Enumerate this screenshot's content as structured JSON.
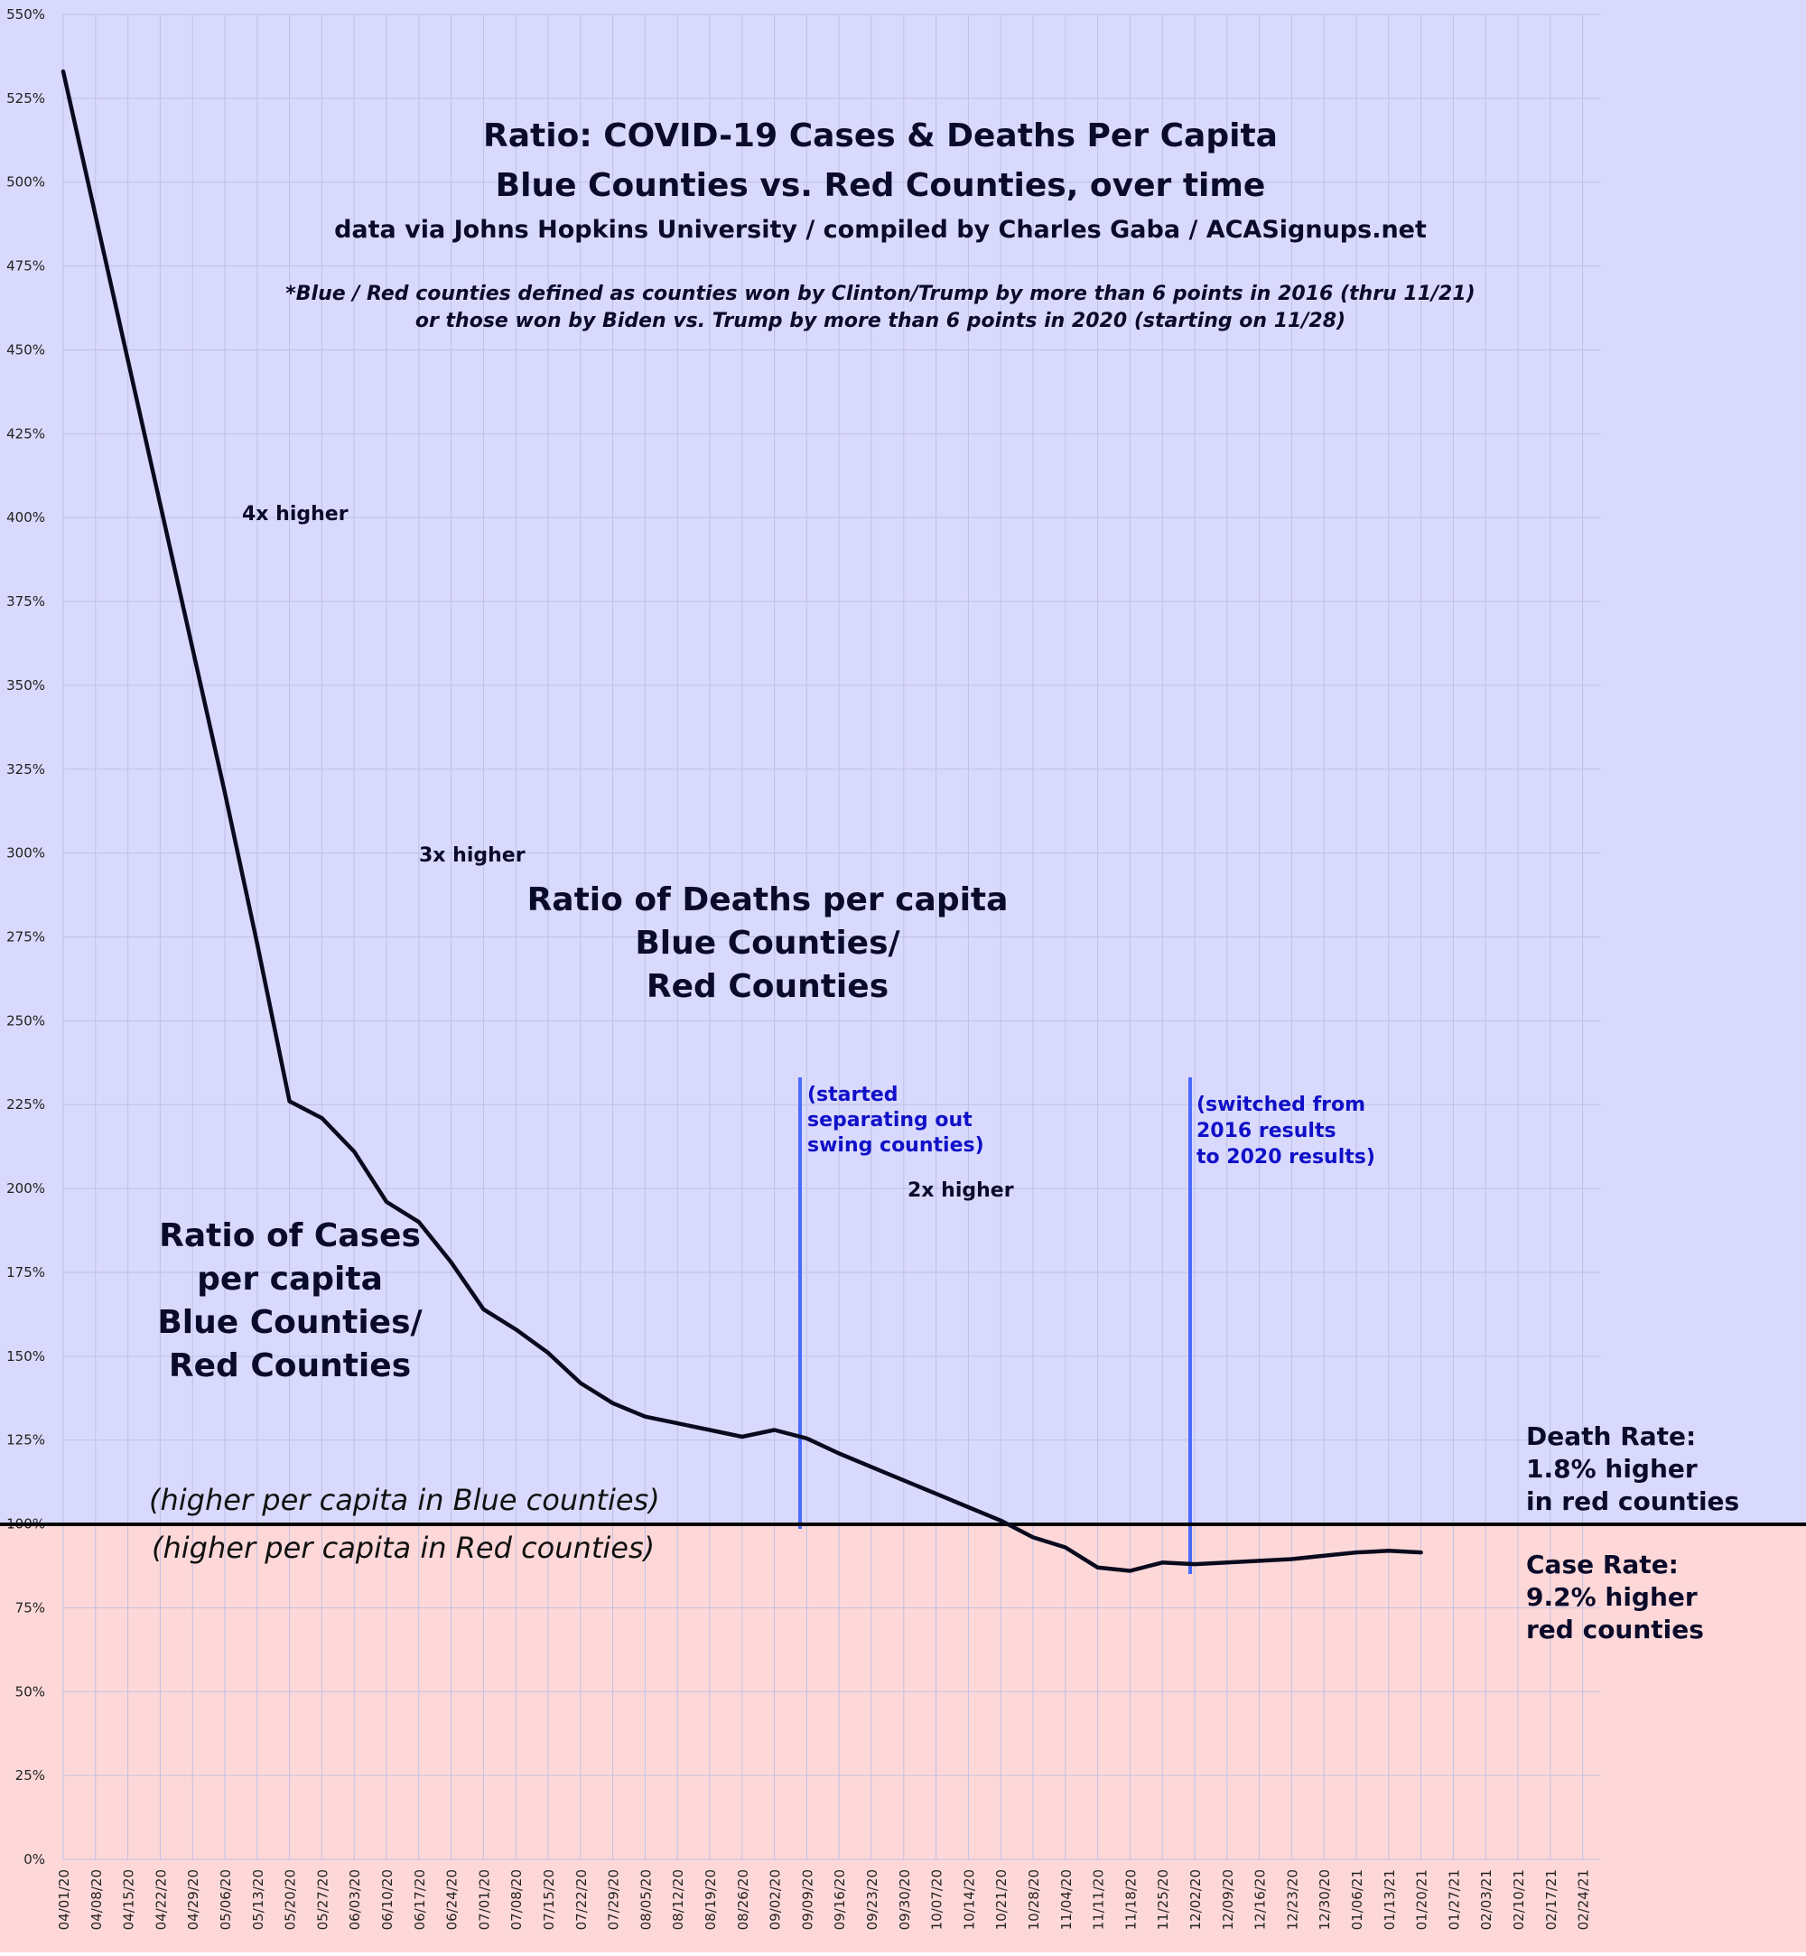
{
  "chart_data": {
    "type": "line",
    "title": "Ratio: COVID-19 Cases & Deaths Per Capita",
    "title_line2": "Blue Counties vs. Red Counties, over time",
    "subtitle": "data via Johns Hopkins University / compiled by Charles Gaba / ACASignups.net",
    "footnote_line1": "*Blue / Red counties defined as counties won by Clinton/Trump by more than 6 points in 2016 (thru 11/21)",
    "footnote_line2": "or those won by Biden vs. Trump by more than 6 points in 2020 (starting on 11/28)",
    "xlabel": "",
    "ylabel": "",
    "ylim": [
      0,
      550
    ],
    "y_ticks": [
      "0%",
      "25%",
      "50%",
      "75%",
      "100%",
      "125%",
      "150%",
      "175%",
      "200%",
      "225%",
      "250%",
      "275%",
      "300%",
      "325%",
      "350%",
      "375%",
      "400%",
      "425%",
      "450%",
      "475%",
      "500%",
      "525%",
      "550%"
    ],
    "categories": [
      "04/01/20",
      "04/08/20",
      "04/15/20",
      "04/22/20",
      "04/29/20",
      "05/06/20",
      "05/13/20",
      "05/20/20",
      "05/27/20",
      "06/03/20",
      "06/10/20",
      "06/17/20",
      "06/24/20",
      "07/01/20",
      "07/08/20",
      "07/15/20",
      "07/22/20",
      "07/29/20",
      "08/05/20",
      "08/12/20",
      "08/19/20",
      "08/26/20",
      "09/02/20",
      "09/09/20",
      "09/16/20",
      "09/23/20",
      "09/30/20",
      "10/07/20",
      "10/14/20",
      "10/21/20",
      "10/28/20",
      "11/04/20",
      "11/11/20",
      "11/18/20",
      "11/25/20",
      "12/02/20",
      "12/09/20",
      "12/16/20",
      "12/23/20",
      "12/30/20",
      "01/06/21",
      "01/13/21",
      "01/20/21",
      "01/27/21",
      "02/03/21",
      "02/10/21",
      "02/17/21",
      "02/24/21"
    ],
    "grid": true,
    "series": [
      {
        "name": "Ratio of Deaths per capita Blue Counties/ Red Counties",
        "color": "#0a0a1e",
        "values": [
          533,
          490,
          447,
          404,
          361,
          318,
          273,
          226,
          221,
          211,
          196,
          190,
          178,
          164,
          158,
          151,
          142,
          136,
          132,
          130,
          128,
          126,
          128,
          125.5,
          121,
          117,
          113,
          109,
          105,
          101,
          96,
          93,
          87,
          86,
          88.5,
          88,
          88.5,
          89,
          89.5,
          90.5,
          91.5,
          92,
          91.5,
          null,
          null,
          null,
          null,
          null
        ]
      },
      {
        "name": "Ratio of Cases per capita Blue Counties/ Red Counties",
        "color": "#0a0a1e",
        "values": [
          null,
          null,
          null,
          null,
          null,
          null,
          null,
          null,
          null,
          null,
          null,
          null,
          null,
          null,
          null,
          null,
          null,
          null,
          null,
          null,
          null,
          null,
          null,
          null,
          null,
          null,
          null,
          null,
          null,
          null,
          null,
          null,
          null,
          null,
          null,
          null,
          null,
          null,
          null,
          null,
          null,
          null,
          null,
          null,
          null,
          null,
          null,
          null
        ]
      }
    ],
    "annotations": {
      "four_x": "4x higher",
      "three_x": "3x higher",
      "two_x": "2x higher",
      "deaths_label": [
        "Ratio of Deaths per capita",
        "Blue Counties/",
        "Red Counties"
      ],
      "cases_label": [
        "Ratio of Cases",
        "per capita",
        "Blue Counties/",
        "Red Counties"
      ],
      "note_swing": [
        "(started",
        "separating out",
        "swing counties)"
      ],
      "note_switch": [
        "(switched from",
        "2016 results",
        "to 2020 results)"
      ],
      "blue_side": "(higher per capita in Blue counties)",
      "red_side": "(higher per capita in Red counties)",
      "death_rate": [
        "Death Rate:",
        "1.8% higher",
        "in red counties"
      ],
      "case_rate": [
        "Case Rate:",
        "9.2% higher",
        "red counties"
      ]
    },
    "colors": {
      "blue_zone": "#d9d9fd",
      "red_zone": "#fed8d8",
      "grid": "#bfc0e6",
      "marker_line": "#4a6bff",
      "series_line": "#0a0a1e"
    }
  }
}
